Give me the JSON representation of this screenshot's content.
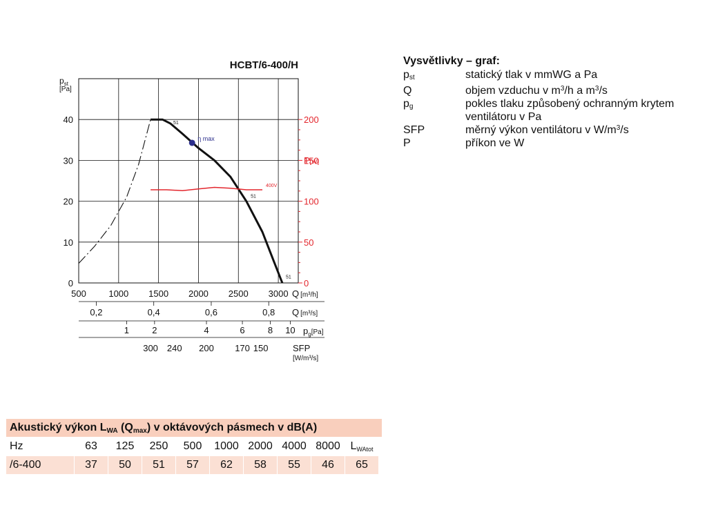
{
  "chart_data": {
    "type": "line",
    "title": "HCBT/6-400/H",
    "left_axis": {
      "label": "p",
      "label_sub": "st",
      "unit": "[Pa]",
      "ticks": [
        0,
        10,
        20,
        30,
        40
      ],
      "ylim": [
        0,
        50
      ]
    },
    "right_axis": {
      "label": "P",
      "unit": "[W]",
      "ticks": [
        0,
        50,
        100,
        150,
        200
      ],
      "ylim": [
        0,
        250
      ],
      "color": "#e3262d"
    },
    "x_axes": [
      {
        "label": "Q",
        "unit": "[m³/h]",
        "ticks": [
          "500",
          "1000",
          "1500",
          "2000",
          "2500",
          "3000"
        ],
        "range": [
          500,
          3250
        ]
      },
      {
        "label": "Q",
        "unit": "[m³/s]",
        "ticks": [
          "0,2",
          "0,4",
          "0,6",
          "0,8"
        ],
        "values": [
          0.2,
          0.4,
          0.6,
          0.8
        ]
      },
      {
        "label": "p",
        "label_sub": "g",
        "unit": "[Pa]",
        "ticks": [
          "1",
          "2",
          "4",
          "6",
          "8",
          "10"
        ],
        "positions_m3h": [
          1100,
          1450,
          2100,
          2550,
          2900,
          3150
        ]
      },
      {
        "label": "SFP",
        "unit": "[W/m³/s]",
        "ticks": [
          "300",
          "240",
          "200",
          "170",
          "150"
        ],
        "positions_m3h": [
          1400,
          1700,
          2100,
          2550,
          2780
        ]
      }
    ],
    "series": [
      {
        "role": "pressure",
        "color": "#111111",
        "points": [
          [
            1400,
            40
          ],
          [
            1550,
            40
          ],
          [
            1650,
            39
          ],
          [
            1800,
            36.5
          ],
          [
            2000,
            33
          ],
          [
            2200,
            30
          ],
          [
            2400,
            26
          ],
          [
            2600,
            20
          ],
          [
            2800,
            12.5
          ],
          [
            2950,
            5
          ],
          [
            3050,
            0
          ]
        ],
        "labels": [
          {
            "text": "51",
            "x": 1650,
            "y": 38.5
          },
          {
            "text": "51",
            "x": 2620,
            "y": 20.5
          },
          {
            "text": "51",
            "x": 3060,
            "y": 0.8
          }
        ]
      },
      {
        "role": "pressure-extension",
        "style": "dashed",
        "color": "#111111",
        "points": [
          [
            500,
            4.8
          ],
          [
            700,
            9
          ],
          [
            900,
            14
          ],
          [
            1100,
            21
          ],
          [
            1250,
            29
          ],
          [
            1400,
            40
          ]
        ]
      },
      {
        "name": "400V",
        "role": "power",
        "axis": "right",
        "color": "#e3262d",
        "points": [
          [
            1400,
            114
          ],
          [
            1600,
            114
          ],
          [
            1800,
            113
          ],
          [
            2000,
            115
          ],
          [
            2200,
            117
          ],
          [
            2400,
            116
          ],
          [
            2600,
            114
          ],
          [
            2800,
            114
          ]
        ]
      }
    ],
    "annotations": [
      {
        "text": "η max",
        "x": 1920,
        "y": 34.3,
        "marker_color": "#2c2f8c"
      }
    ],
    "grid": true,
    "h_gridlines_extra": [
      50
    ]
  },
  "legend": {
    "title": "Vysvětlivky – graf:",
    "rows": [
      {
        "sym": "p",
        "sym_sub": "st",
        "desc": "statický tlak v mmWG a Pa"
      },
      {
        "sym": "Q",
        "sym_sub": "",
        "desc_pre": "objem vzduchu v m",
        "desc_sup": "3",
        "desc_mid": "/h a m",
        "desc_sup2": "3",
        "desc_post": "/s"
      },
      {
        "sym": "p",
        "sym_sub": "g",
        "desc": "pokles tlaku způsobený ochranným krytem ventilátoru v Pa"
      },
      {
        "sym": "SFP",
        "sym_sub": "",
        "desc_pre": "měrný výkon ventilátoru v W/m",
        "desc_sup": "3",
        "desc_post": "/s"
      },
      {
        "sym": "P",
        "sym_sub": "",
        "desc": "příkon ve W"
      }
    ]
  },
  "acoustic": {
    "title_pre": "Akustický výkon L",
    "title_sub": "WA",
    "title_mid": " (Q",
    "title_sub2": "max",
    "title_post": ") v oktávových pásmech v dB(A)",
    "header_label": "Hz",
    "bands": [
      "63",
      "125",
      "250",
      "500",
      "1000",
      "2000",
      "4000",
      "8000"
    ],
    "total_label": "L",
    "total_sub": "WAtot",
    "row_label": "/6-400",
    "values": [
      "37",
      "50",
      "51",
      "57",
      "62",
      "58",
      "55",
      "46",
      "65"
    ]
  }
}
